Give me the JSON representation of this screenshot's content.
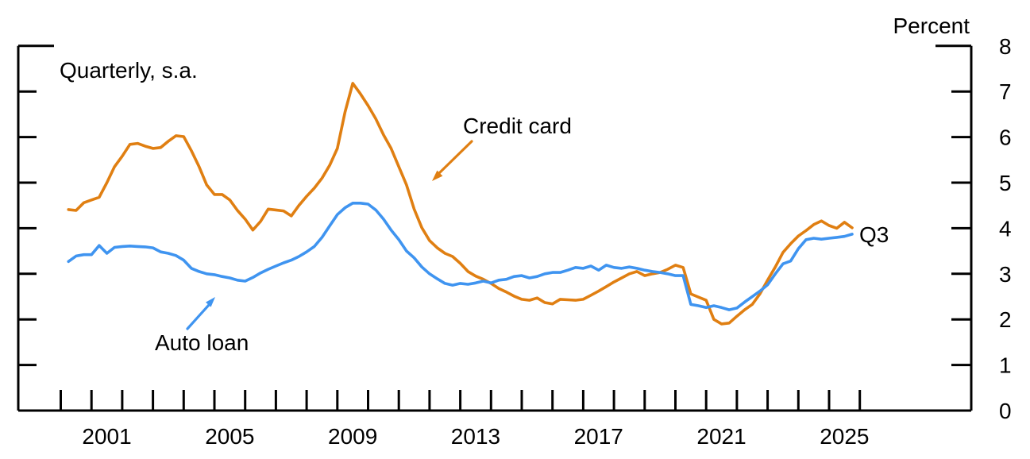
{
  "header": {
    "unit_label": "Percent",
    "frequency_note": "Quarterly, s.a."
  },
  "annotations": {
    "credit_card_label": "Credit card",
    "auto_loan_label": "Auto loan",
    "latest_quarter_label": "Q3"
  },
  "colors": {
    "credit_card": "#E07F12",
    "auto_loan": "#3F94F0",
    "axis": "#000000"
  },
  "chart_data": {
    "type": "line",
    "title": "",
    "subtitle": "Quarterly, s.a.",
    "ylabel": "Percent",
    "ylim": [
      0,
      8
    ],
    "yticks": [
      0,
      1,
      2,
      3,
      4,
      5,
      6,
      7,
      8
    ],
    "ytick_side": "right",
    "grid": false,
    "legend_position": "inline-annotations",
    "x_start": 2000.25,
    "x_step": 0.25,
    "x_first_period": "2000 Q1",
    "x_last_period": "2025 Q3",
    "xtick_years": [
      2000,
      2001,
      2002,
      2003,
      2004,
      2005,
      2006,
      2007,
      2008,
      2009,
      2010,
      2011,
      2012,
      2013,
      2014,
      2015,
      2016,
      2017,
      2018,
      2019,
      2020,
      2021,
      2022,
      2023,
      2024,
      2025,
      2026
    ],
    "xtick_label_years": [
      2001,
      2005,
      2009,
      2013,
      2017,
      2021,
      2025
    ],
    "xtick_labels": [
      "2001",
      "2005",
      "2009",
      "2013",
      "2017",
      "2021",
      "2025"
    ],
    "series": [
      {
        "name": "Credit card",
        "color": "#E07F12",
        "values": [
          4.41,
          4.39,
          4.56,
          4.62,
          4.68,
          5.0,
          5.35,
          5.58,
          5.84,
          5.86,
          5.8,
          5.75,
          5.77,
          5.91,
          6.03,
          6.01,
          5.7,
          5.35,
          4.95,
          4.74,
          4.74,
          4.62,
          4.39,
          4.2,
          3.96,
          4.15,
          4.42,
          4.4,
          4.38,
          4.27,
          4.5,
          4.7,
          4.88,
          5.1,
          5.38,
          5.75,
          6.55,
          7.18,
          6.95,
          6.69,
          6.4,
          6.05,
          5.75,
          5.35,
          4.95,
          4.42,
          4.01,
          3.73,
          3.57,
          3.45,
          3.38,
          3.23,
          3.05,
          2.95,
          2.88,
          2.79,
          2.68,
          2.6,
          2.51,
          2.44,
          2.42,
          2.47,
          2.37,
          2.34,
          2.44,
          2.43,
          2.42,
          2.44,
          2.53,
          2.62,
          2.72,
          2.82,
          2.91,
          3.0,
          3.05,
          2.96,
          3.0,
          3.03,
          3.1,
          3.19,
          3.14,
          2.56,
          2.49,
          2.42,
          2.0,
          1.9,
          1.92,
          2.07,
          2.21,
          2.33,
          2.56,
          2.86,
          3.15,
          3.47,
          3.66,
          3.83,
          3.95,
          4.08,
          4.16,
          4.06,
          4.0,
          4.13,
          4.01
        ]
      },
      {
        "name": "Auto loan",
        "color": "#3F94F0",
        "values": [
          3.27,
          3.39,
          3.42,
          3.42,
          3.62,
          3.45,
          3.58,
          3.6,
          3.61,
          3.6,
          3.59,
          3.57,
          3.48,
          3.45,
          3.4,
          3.3,
          3.12,
          3.05,
          3.0,
          2.98,
          2.94,
          2.91,
          2.86,
          2.84,
          2.92,
          3.02,
          3.1,
          3.17,
          3.24,
          3.3,
          3.38,
          3.48,
          3.6,
          3.8,
          4.05,
          4.3,
          4.45,
          4.55,
          4.55,
          4.53,
          4.4,
          4.2,
          3.96,
          3.75,
          3.5,
          3.35,
          3.15,
          3.0,
          2.89,
          2.79,
          2.75,
          2.79,
          2.77,
          2.8,
          2.84,
          2.8,
          2.86,
          2.88,
          2.94,
          2.96,
          2.91,
          2.94,
          3.0,
          3.03,
          3.03,
          3.08,
          3.14,
          3.12,
          3.17,
          3.08,
          3.19,
          3.14,
          3.12,
          3.15,
          3.12,
          3.08,
          3.05,
          3.03,
          3.0,
          2.96,
          2.96,
          2.33,
          2.3,
          2.26,
          2.3,
          2.26,
          2.21,
          2.25,
          2.38,
          2.5,
          2.62,
          2.76,
          3.0,
          3.22,
          3.28,
          3.55,
          3.75,
          3.78,
          3.76,
          3.78,
          3.8,
          3.82,
          3.87
        ]
      }
    ]
  }
}
